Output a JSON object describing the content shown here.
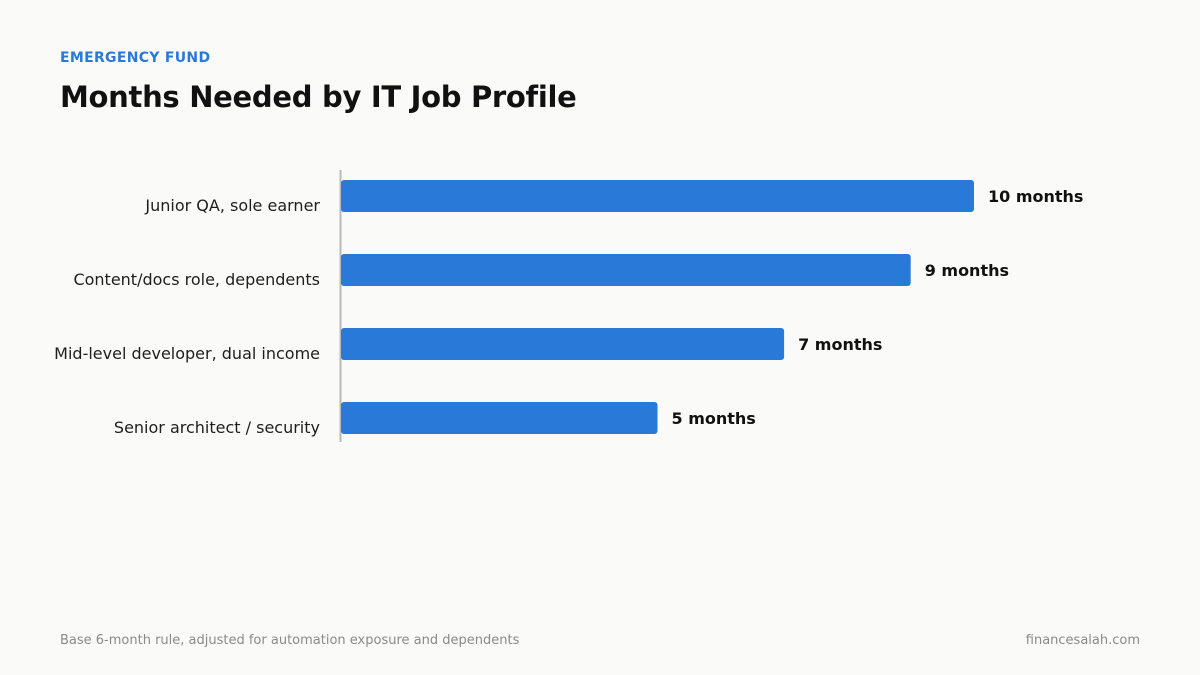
{
  "header": {
    "eyebrow": "EMERGENCY FUND",
    "title": "Months Needed by IT Job Profile"
  },
  "footer": {
    "note": "Base 6-month rule, adjusted for automation exposure and dependents",
    "source": "financesalah.com"
  },
  "colors": {
    "bar": "#2979d9",
    "accent": "#2979d9",
    "axis": "#b9b9b9"
  },
  "chart_data": {
    "type": "bar",
    "orientation": "horizontal",
    "categories": [
      "Junior QA, sole earner",
      "Content/docs role, dependents",
      "Mid-level developer, dual income",
      "Senior architect / security"
    ],
    "values": [
      10,
      9,
      7,
      5
    ],
    "value_labels": [
      "10 months",
      "9 months",
      "7 months",
      "5 months"
    ],
    "unit": "months",
    "xlim": [
      0,
      10
    ],
    "grid": false,
    "legend": "none"
  }
}
